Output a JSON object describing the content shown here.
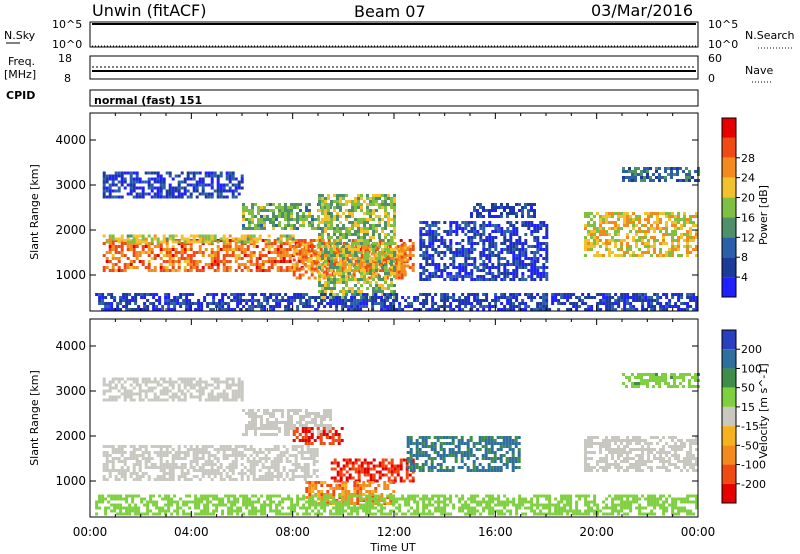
{
  "header": {
    "station": "Unwin (fitACF)",
    "beam": "Beam 07",
    "date": "03/Mar/2016"
  },
  "status_panels": {
    "nsky_label": "N.Sky",
    "nsky_ticks": [
      "10^5",
      "10^0"
    ],
    "nsearch_label": "N.Search",
    "nsearch_ticks": [
      "10^5",
      "10^0"
    ],
    "freq_label": "Freq.",
    "freq_units": "[MHz]",
    "freq_ticks": [
      "18",
      "8"
    ],
    "nave_label": "Nave",
    "nave_ticks": [
      "60",
      "0"
    ],
    "cpid_label": "CPID",
    "cpid_text": "normal (fast) 151"
  },
  "chart_data": [
    {
      "type": "heatmap",
      "panel": "power",
      "ylabel": "Slant Range [km]",
      "yticks": [
        1000,
        2000,
        3000,
        4000
      ],
      "ylim": [
        200,
        4600
      ],
      "xlabel": "Time UT",
      "xticks": [
        "00:00",
        "04:00",
        "08:00",
        "12:00",
        "16:00",
        "20:00",
        "00:00"
      ],
      "xlim_hours": [
        0,
        24
      ],
      "colorbar": {
        "label": "Power [dB]",
        "ticks": [
          "4",
          "8",
          "12",
          "16",
          "20",
          "24",
          "28"
        ],
        "levels": [
          0,
          4,
          8,
          12,
          16,
          20,
          24,
          28,
          32
        ],
        "colors": [
          "#2020ff",
          "#1c3a9a",
          "#2b5fa8",
          "#4f8f6a",
          "#7fc043",
          "#f2c12e",
          "#f28a1e",
          "#f04a14",
          "#e60000"
        ]
      },
      "regions": [
        {
          "t0": 0.5,
          "t1": 12.8,
          "r0": 1100,
          "r1": 1800,
          "value": 28
        },
        {
          "t0": 0.5,
          "t1": 8.0,
          "r0": 1750,
          "r1": 1900,
          "value": 20
        },
        {
          "t0": 8.0,
          "t1": 12.5,
          "r0": 900,
          "r1": 1700,
          "value": 26
        },
        {
          "t0": 0.5,
          "t1": 6.0,
          "r0": 2700,
          "r1": 3300,
          "value": 6
        },
        {
          "t0": 6.0,
          "t1": 9.5,
          "r0": 2000,
          "r1": 2600,
          "value": 16
        },
        {
          "t0": 9.0,
          "t1": 12.0,
          "r0": 500,
          "r1": 2800,
          "value": 18
        },
        {
          "t0": 13.0,
          "t1": 18.0,
          "r0": 900,
          "r1": 2200,
          "value": 6
        },
        {
          "t0": 15.0,
          "t1": 17.5,
          "r0": 2300,
          "r1": 2600,
          "value": 6
        },
        {
          "t0": 19.5,
          "t1": 24.0,
          "r0": 1400,
          "r1": 2400,
          "value": 22
        },
        {
          "t0": 21.0,
          "t1": 24.0,
          "r0": 3100,
          "r1": 3400,
          "value": 10
        },
        {
          "t0": 0.2,
          "t1": 24.0,
          "r0": 250,
          "r1": 600,
          "value": 6
        }
      ]
    },
    {
      "type": "heatmap",
      "panel": "velocity",
      "ylabel": "Slant Range [km]",
      "yticks": [
        1000,
        2000,
        3000,
        4000
      ],
      "ylim": [
        200,
        4600
      ],
      "xlabel": "Time UT",
      "xticks": [
        "00:00",
        "04:00",
        "08:00",
        "12:00",
        "16:00",
        "20:00",
        "00:00"
      ],
      "xlim_hours": [
        0,
        24
      ],
      "colorbar": {
        "label": "Velocity [m s^-1]",
        "ticks": [
          "200",
          "100",
          "50",
          "15",
          "-15",
          "-50",
          "-100",
          "-200"
        ],
        "colors": [
          "#2a3fbf",
          "#2f6f9e",
          "#3e8e4a",
          "#7fd040",
          "#c8c8c0",
          "#f5b21e",
          "#f28a1e",
          "#f04a14",
          "#e60000"
        ]
      },
      "regions": [
        {
          "t0": 0.5,
          "t1": 9.0,
          "r0": 1000,
          "r1": 1800,
          "value": 0
        },
        {
          "t0": 0.5,
          "t1": 6.0,
          "r0": 2800,
          "r1": 3300,
          "value": 0
        },
        {
          "t0": 6.0,
          "t1": 9.5,
          "r0": 2000,
          "r1": 2600,
          "value": 0
        },
        {
          "t0": 9.5,
          "t1": 12.8,
          "r0": 1000,
          "r1": 1500,
          "value": -200
        },
        {
          "t0": 8.5,
          "t1": 12.0,
          "r0": 500,
          "r1": 1000,
          "value": -80
        },
        {
          "t0": 8.0,
          "t1": 10.0,
          "r0": 1800,
          "r1": 2200,
          "value": -200
        },
        {
          "t0": 12.5,
          "t1": 17.0,
          "r0": 1200,
          "r1": 2000,
          "value": 120
        },
        {
          "t0": 19.5,
          "t1": 24.0,
          "r0": 1200,
          "r1": 2000,
          "value": 0
        },
        {
          "t0": 21.0,
          "t1": 24.0,
          "r0": 3100,
          "r1": 3400,
          "value": 40
        },
        {
          "t0": 0.2,
          "t1": 24.0,
          "r0": 250,
          "r1": 700,
          "value": 30
        }
      ]
    }
  ]
}
